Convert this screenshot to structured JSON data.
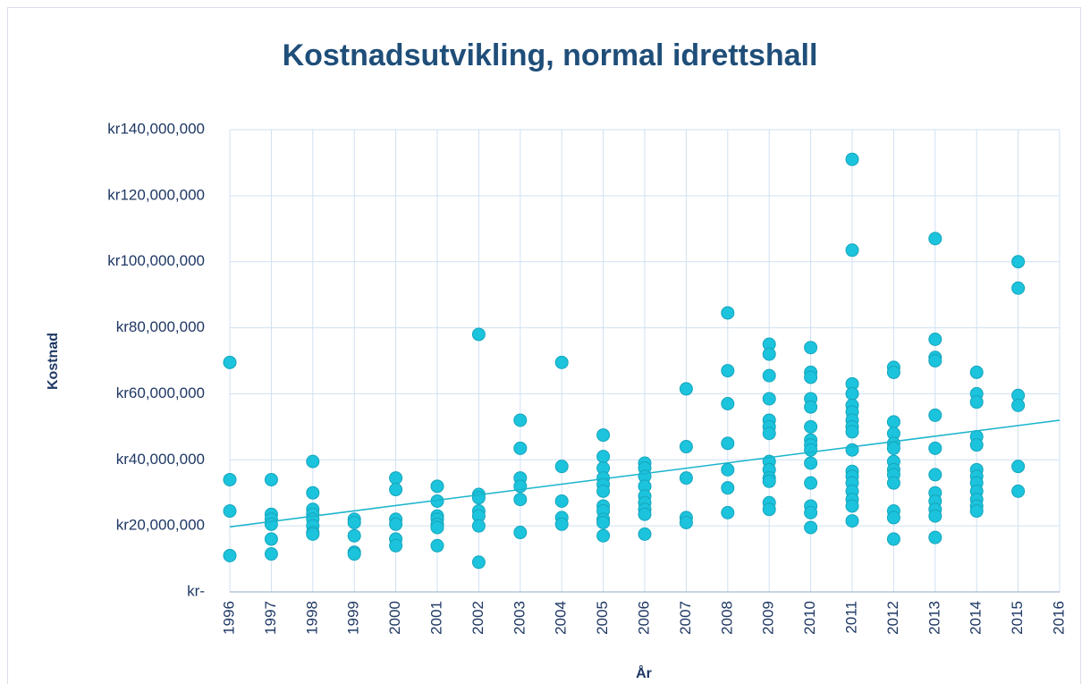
{
  "chart_data": {
    "type": "scatter",
    "title": "Kostnadsutvikling, normal idrettshall",
    "xlabel": "År",
    "ylabel": "Kostnad",
    "color": "#1cc3dc",
    "trend_color": "#19b4cc",
    "grid": true,
    "xlim": [
      1996,
      2016
    ],
    "xticks": [
      1996,
      1997,
      1998,
      1999,
      2000,
      2001,
      2002,
      2003,
      2004,
      2005,
      2006,
      2007,
      2008,
      2009,
      2010,
      2011,
      2012,
      2013,
      2014,
      2015,
      2016
    ],
    "ylim": [
      0,
      140000000
    ],
    "yticks": [
      {
        "value": 0,
        "label": "kr-"
      },
      {
        "value": 20000000,
        "label": "kr20,000,000"
      },
      {
        "value": 40000000,
        "label": "kr40,000,000"
      },
      {
        "value": 60000000,
        "label": "kr60,000,000"
      },
      {
        "value": 80000000,
        "label": "kr80,000,000"
      },
      {
        "value": 100000000,
        "label": "kr100,000,000"
      },
      {
        "value": 120000000,
        "label": "kr120,000,000"
      },
      {
        "value": 140000000,
        "label": "kr140,000,000"
      }
    ],
    "x": [
      1996,
      1996,
      1996,
      1996,
      1997,
      1997,
      1997,
      1997,
      1997,
      1997,
      1998,
      1998,
      1998,
      1998,
      1998,
      1998,
      1998,
      1998,
      1999,
      1999,
      1999,
      1999,
      1999,
      2000,
      2000,
      2000,
      2000,
      2000,
      2000,
      2001,
      2001,
      2001,
      2001,
      2001,
      2001,
      2001,
      2002,
      2002,
      2002,
      2002,
      2002,
      2002,
      2002,
      2003,
      2003,
      2003,
      2003,
      2003,
      2003,
      2004,
      2004,
      2004,
      2004,
      2004,
      2005,
      2005,
      2005,
      2005,
      2005,
      2005,
      2005,
      2005,
      2005,
      2005,
      2005,
      2006,
      2006,
      2006,
      2006,
      2006,
      2006,
      2006,
      2006,
      2006,
      2007,
      2007,
      2007,
      2007,
      2007,
      2008,
      2008,
      2008,
      2008,
      2008,
      2008,
      2008,
      2009,
      2009,
      2009,
      2009,
      2009,
      2009,
      2009,
      2009,
      2009,
      2009,
      2009,
      2009,
      2009,
      2010,
      2010,
      2010,
      2010,
      2010,
      2010,
      2010,
      2010,
      2010,
      2010,
      2010,
      2010,
      2010,
      2010,
      2011,
      2011,
      2011,
      2011,
      2011,
      2011,
      2011,
      2011,
      2011,
      2011,
      2011,
      2011,
      2011,
      2011,
      2011,
      2011,
      2011,
      2012,
      2012,
      2012,
      2012,
      2012,
      2012,
      2012,
      2012,
      2012,
      2012,
      2012,
      2012,
      2012,
      2013,
      2013,
      2013,
      2013,
      2013,
      2013,
      2013,
      2013,
      2013,
      2013,
      2013,
      2013,
      2014,
      2014,
      2014,
      2014,
      2014,
      2014,
      2014,
      2014,
      2014,
      2014,
      2014,
      2014,
      2015,
      2015,
      2015,
      2015,
      2015,
      2015
    ],
    "values": [
      69500000,
      34000000,
      24500000,
      11000000,
      34000000,
      23500000,
      22000000,
      20500000,
      16000000,
      11500000,
      39500000,
      30000000,
      25000000,
      23500000,
      22000000,
      20000000,
      18000000,
      17500000,
      22000000,
      21000000,
      17000000,
      12000000,
      11500000,
      34500000,
      31000000,
      22000000,
      20500000,
      16000000,
      14000000,
      32000000,
      27500000,
      23000000,
      22000000,
      20500000,
      19500000,
      14000000,
      78000000,
      29500000,
      28500000,
      24500000,
      23000000,
      20000000,
      9000000,
      52000000,
      43500000,
      34500000,
      32000000,
      28000000,
      18000000,
      69500000,
      38000000,
      27500000,
      22500000,
      20500000,
      47500000,
      41000000,
      37500000,
      34500000,
      32500000,
      30500000,
      26000000,
      24500000,
      22000000,
      21000000,
      17000000,
      39000000,
      37500000,
      35000000,
      32000000,
      29000000,
      27000000,
      25000000,
      23500000,
      17500000,
      61500000,
      44000000,
      34500000,
      22500000,
      21000000,
      84500000,
      67000000,
      57000000,
      45000000,
      37000000,
      31500000,
      24000000,
      75000000,
      72000000,
      65500000,
      58500000,
      52000000,
      50000000,
      48000000,
      39500000,
      37000000,
      34500000,
      33500000,
      27000000,
      25000000,
      74000000,
      66500000,
      65000000,
      58500000,
      56000000,
      50000000,
      46000000,
      44500000,
      43000000,
      39000000,
      33000000,
      26000000,
      24000000,
      19500000,
      131000000,
      103500000,
      63000000,
      60000000,
      56500000,
      54500000,
      52000000,
      50000000,
      48500000,
      43000000,
      36500000,
      35000000,
      33000000,
      30500000,
      28000000,
      26000000,
      21500000,
      68000000,
      66500000,
      51500000,
      48000000,
      45000000,
      43500000,
      39500000,
      37000000,
      35500000,
      33000000,
      24500000,
      22500000,
      16000000,
      107000000,
      76500000,
      71000000,
      70000000,
      53500000,
      43500000,
      35500000,
      30000000,
      27500000,
      25000000,
      23000000,
      16500000,
      66500000,
      60000000,
      57500000,
      47000000,
      44500000,
      37000000,
      35000000,
      33000000,
      30500000,
      28000000,
      26000000,
      24500000,
      100000000,
      92000000,
      59500000,
      56500000,
      38000000,
      30500000
    ],
    "trendline": {
      "x": [
        1996,
        2016
      ],
      "values": [
        19700000,
        52000000
      ]
    }
  }
}
